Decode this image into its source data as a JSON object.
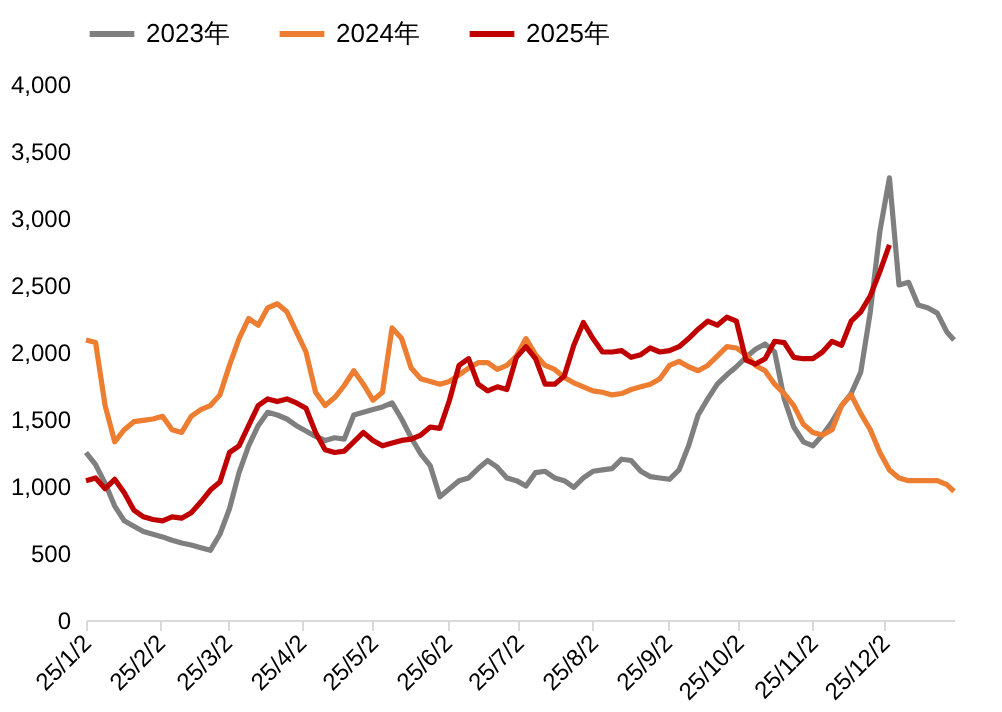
{
  "chart_data": {
    "type": "line",
    "legend": "top",
    "grid": false,
    "marker": "none",
    "line_style": "solid",
    "x": [
      "2025-01-02",
      "2025-01-06",
      "2025-01-10",
      "2025-01-14",
      "2025-01-18",
      "2025-01-22",
      "2025-01-26",
      "2025-01-30",
      "2025-02-03",
      "2025-02-07",
      "2025-02-11",
      "2025-02-15",
      "2025-02-19",
      "2025-02-23",
      "2025-02-27",
      "2025-03-03",
      "2025-03-07",
      "2025-03-11",
      "2025-03-15",
      "2025-03-19",
      "2025-03-23",
      "2025-03-27",
      "2025-03-31",
      "2025-04-04",
      "2025-04-08",
      "2025-04-12",
      "2025-04-16",
      "2025-04-20",
      "2025-04-24",
      "2025-04-28",
      "2025-05-02",
      "2025-05-06",
      "2025-05-10",
      "2025-05-14",
      "2025-05-18",
      "2025-05-22",
      "2025-05-26",
      "2025-05-30",
      "2025-06-03",
      "2025-06-07",
      "2025-06-11",
      "2025-06-15",
      "2025-06-19",
      "2025-06-23",
      "2025-06-27",
      "2025-07-01",
      "2025-07-05",
      "2025-07-09",
      "2025-07-13",
      "2025-07-17",
      "2025-07-21",
      "2025-07-25",
      "2025-07-29",
      "2025-08-02",
      "2025-08-06",
      "2025-08-10",
      "2025-08-14",
      "2025-08-18",
      "2025-08-22",
      "2025-08-26",
      "2025-08-30",
      "2025-09-03",
      "2025-09-07",
      "2025-09-11",
      "2025-09-15",
      "2025-09-19",
      "2025-09-23",
      "2025-09-27",
      "2025-10-01",
      "2025-10-05",
      "2025-10-09",
      "2025-10-13",
      "2025-10-17",
      "2025-10-21",
      "2025-10-25",
      "2025-10-29",
      "2025-11-02",
      "2025-11-06",
      "2025-11-10",
      "2025-11-14",
      "2025-11-18",
      "2025-11-22",
      "2025-11-26",
      "2025-11-30",
      "2025-12-04",
      "2025-12-08",
      "2025-12-12",
      "2025-12-16",
      "2025-12-20",
      "2025-12-24",
      "2025-12-28",
      "2025-12-31"
    ],
    "series": [
      {
        "name": "2023年",
        "color": "#7f7f7f",
        "values": [
          1250,
          1160,
          1020,
          850,
          740,
          700,
          660,
          640,
          620,
          595,
          575,
          560,
          540,
          520,
          640,
          830,
          1100,
          1300,
          1450,
          1550,
          1530,
          1500,
          1450,
          1410,
          1370,
          1340,
          1360,
          1350,
          1530,
          1550,
          1570,
          1590,
          1620,
          1500,
          1360,
          1240,
          1150,
          920,
          980,
          1040,
          1060,
          1130,
          1190,
          1140,
          1060,
          1040,
          1000,
          1100,
          1110,
          1060,
          1040,
          990,
          1060,
          1110,
          1120,
          1130,
          1200,
          1190,
          1110,
          1070,
          1060,
          1050,
          1120,
          1300,
          1530,
          1650,
          1760,
          1830,
          1890,
          1960,
          2020,
          2060,
          2000,
          1650,
          1440,
          1330,
          1300,
          1380,
          1480,
          1600,
          1690,
          1850,
          2300,
          2900,
          3300,
          2500,
          2520,
          2350,
          2330,
          2290,
          2150,
          2090
        ]
      },
      {
        "name": "2024年",
        "color": "#ed7d31",
        "values": [
          2090,
          2070,
          1600,
          1330,
          1420,
          1480,
          1490,
          1500,
          1520,
          1420,
          1400,
          1520,
          1570,
          1600,
          1680,
          1900,
          2100,
          2250,
          2200,
          2330,
          2360,
          2300,
          2150,
          2000,
          1700,
          1600,
          1660,
          1750,
          1860,
          1760,
          1640,
          1700,
          2180,
          2100,
          1880,
          1800,
          1780,
          1760,
          1780,
          1830,
          1880,
          1920,
          1920,
          1870,
          1900,
          1970,
          2100,
          1980,
          1900,
          1870,
          1810,
          1770,
          1740,
          1710,
          1700,
          1680,
          1690,
          1720,
          1740,
          1760,
          1800,
          1900,
          1930,
          1890,
          1860,
          1900,
          1970,
          2040,
          2030,
          1980,
          1900,
          1860,
          1760,
          1690,
          1600,
          1460,
          1400,
          1380,
          1420,
          1600,
          1680,
          1540,
          1420,
          1250,
          1120,
          1060,
          1040,
          1040,
          1040,
          1040,
          1010,
          960
        ]
      },
      {
        "name": "2025年",
        "color": "#c00000",
        "values": [
          1040,
          1060,
          980,
          1050,
          950,
          820,
          770,
          750,
          740,
          770,
          760,
          800,
          880,
          970,
          1030,
          1250,
          1300,
          1450,
          1600,
          1650,
          1630,
          1650,
          1620,
          1580,
          1400,
          1270,
          1250,
          1260,
          1330,
          1400,
          1340,
          1300,
          1320,
          1340,
          1350,
          1380,
          1440,
          1430,
          1640,
          1900,
          1950,
          1760,
          1710,
          1740,
          1720,
          1960,
          2040,
          1950,
          1760,
          1760,
          1820,
          2050,
          2220,
          2100,
          2000,
          2000,
          2010,
          1960,
          1980,
          2030,
          2000,
          2010,
          2040,
          2100,
          2170,
          2230,
          2200,
          2260,
          2230,
          1940,
          1910,
          1950,
          2080,
          2070,
          1960,
          1950,
          1950,
          2000,
          2080,
          2050,
          2230,
          2300,
          2420,
          2600,
          2800,
          null,
          null,
          null,
          null,
          null,
          null,
          null
        ]
      }
    ],
    "xlim": [
      "2025-01-02",
      "2025-12-31"
    ],
    "xticks": [
      {
        "value": "2025-01-02",
        "label": "25/1/2"
      },
      {
        "value": "2025-02-02",
        "label": "25/2/2"
      },
      {
        "value": "2025-03-02",
        "label": "25/3/2"
      },
      {
        "value": "2025-04-02",
        "label": "25/4/2"
      },
      {
        "value": "2025-05-02",
        "label": "25/5/2"
      },
      {
        "value": "2025-06-02",
        "label": "25/6/2"
      },
      {
        "value": "2025-07-02",
        "label": "25/7/2"
      },
      {
        "value": "2025-08-02",
        "label": "25/8/2"
      },
      {
        "value": "2025-09-02",
        "label": "25/9/2"
      },
      {
        "value": "2025-10-02",
        "label": "25/10/2"
      },
      {
        "value": "2025-11-02",
        "label": "25/11/2"
      },
      {
        "value": "2025-12-02",
        "label": "25/12/2"
      }
    ],
    "ylim": [
      0,
      4000
    ],
    "yticks": [
      {
        "value": 0,
        "label": "0"
      },
      {
        "value": 500,
        "label": "500"
      },
      {
        "value": 1000,
        "label": "1,000"
      },
      {
        "value": 1500,
        "label": "1,500"
      },
      {
        "value": 2000,
        "label": "2,000"
      },
      {
        "value": 2500,
        "label": "2,500"
      },
      {
        "value": 3000,
        "label": "3,000"
      },
      {
        "value": 3500,
        "label": "3,500"
      },
      {
        "value": 4000,
        "label": "4,000"
      }
    ]
  }
}
